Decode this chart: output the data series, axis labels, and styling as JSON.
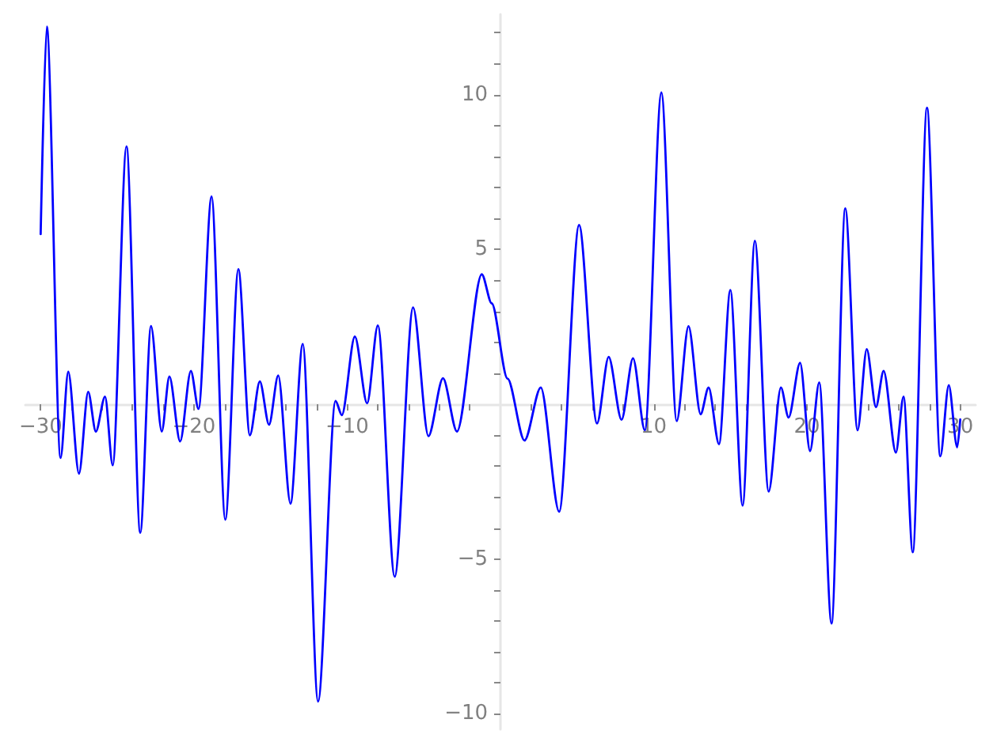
{
  "chart_data": {
    "type": "line",
    "x": [
      -30,
      -29.6,
      -28.7,
      -28.2,
      -27.5,
      -26.9,
      -26.4,
      -25.8,
      -25.3,
      -24.4,
      -23.5,
      -22.8,
      -22.1,
      -21.6,
      -20.9,
      -20.2,
      -19.7,
      -18.85,
      -17.95,
      -17.1,
      -16.35,
      -15.7,
      -15.1,
      -14.5,
      -13.7,
      -12.9,
      -11.9,
      -10.76,
      -10.35,
      -9.5,
      -8.7,
      -8.0,
      -6.9,
      -5.7,
      -4.7,
      -3.75,
      -2.84,
      -1.22,
      -0.57,
      0.46,
      1.57,
      2.63,
      3.83,
      5.13,
      6.3,
      7.06,
      7.9,
      8.65,
      9.42,
      10.5,
      11.5,
      12.27,
      13.06,
      13.58,
      14.26,
      15.0,
      15.8,
      16.6,
      17.5,
      18.3,
      18.8,
      19.55,
      20.2,
      20.8,
      21.6,
      22.5,
      23.3,
      23.9,
      24.5,
      25.0,
      25.8,
      26.3,
      26.9,
      27.83,
      28.7,
      29.25,
      29.8,
      30
    ],
    "series": [
      {
        "color": "#0000ff",
        "values": [
          5.5,
          12.2,
          -1.73,
          1.05,
          -2.24,
          0.4,
          -0.88,
          0.25,
          -1.97,
          8.33,
          -4.15,
          2.53,
          -0.88,
          0.9,
          -1.2,
          1.08,
          -0.15,
          6.71,
          -3.73,
          4.37,
          -1.0,
          0.74,
          -0.66,
          0.93,
          -3.21,
          1.95,
          -9.6,
          0.11,
          -0.35,
          2.19,
          0.03,
          2.55,
          -5.57,
          3.13,
          -1.03,
          0.84,
          -0.88,
          4.2,
          3.26,
          0.83,
          -1.17,
          0.54,
          -3.47,
          5.79,
          -0.62,
          1.53,
          -0.5,
          1.49,
          -0.84,
          10.07,
          -0.54,
          2.52,
          -0.32,
          0.54,
          -1.29,
          3.69,
          -3.27,
          5.28,
          -2.82,
          0.54,
          -0.43,
          1.34,
          -1.51,
          0.71,
          -7.08,
          6.33,
          -0.84,
          1.78,
          -0.09,
          1.08,
          -1.56,
          0.25,
          -4.78,
          9.58,
          -1.68,
          0.62,
          -1.39,
          -0.49
        ]
      }
    ],
    "xlim": [
      -31,
      31
    ],
    "xticks": [
      -30,
      {
        "value": -28,
        "label": null
      },
      {
        "value": -26,
        "label": null
      },
      {
        "value": -24,
        "label": null
      },
      {
        "value": -22,
        "label": null
      },
      -20,
      {
        "value": -18,
        "label": null
      },
      {
        "value": -16,
        "label": null
      },
      {
        "value": -14,
        "label": null
      },
      {
        "value": -12,
        "label": null
      },
      -10,
      {
        "value": -8,
        "label": null
      },
      {
        "value": -6,
        "label": null
      },
      {
        "value": -4,
        "label": null
      },
      {
        "value": -2,
        "label": null
      },
      {
        "value": 2,
        "label": null
      },
      {
        "value": 4,
        "label": null
      },
      {
        "value": 6,
        "label": null
      },
      {
        "value": 8,
        "label": null
      },
      10,
      {
        "value": 12,
        "label": null
      },
      {
        "value": 14,
        "label": null
      },
      {
        "value": 16,
        "label": null
      },
      {
        "value": 18,
        "label": null
      },
      20,
      {
        "value": 22,
        "label": null
      },
      {
        "value": 24,
        "label": null
      },
      {
        "value": 26,
        "label": null
      },
      {
        "value": 28,
        "label": null
      },
      30
    ],
    "ylim": [
      -10.5,
      12.6
    ],
    "yticks": [
      -10,
      {
        "value": -9,
        "label": null
      },
      {
        "value": -8,
        "label": null
      },
      {
        "value": -7,
        "label": null
      },
      {
        "value": -6,
        "label": null
      },
      -5,
      {
        "value": -4,
        "label": null
      },
      {
        "value": -3,
        "label": null
      },
      {
        "value": -2,
        "label": null
      },
      {
        "value": -1,
        "label": null
      },
      {
        "value": 1,
        "label": null
      },
      {
        "value": 2,
        "label": null
      },
      {
        "value": 3,
        "label": null
      },
      {
        "value": 4,
        "label": null
      },
      5,
      {
        "value": 6,
        "label": null
      },
      {
        "value": 7,
        "label": null
      },
      {
        "value": 8,
        "label": null
      },
      {
        "value": 9,
        "label": null
      },
      10,
      {
        "value": 11,
        "label": null
      },
      {
        "value": 12,
        "label": null
      }
    ],
    "grid": false,
    "marker": "none",
    "line_style": "solid"
  }
}
